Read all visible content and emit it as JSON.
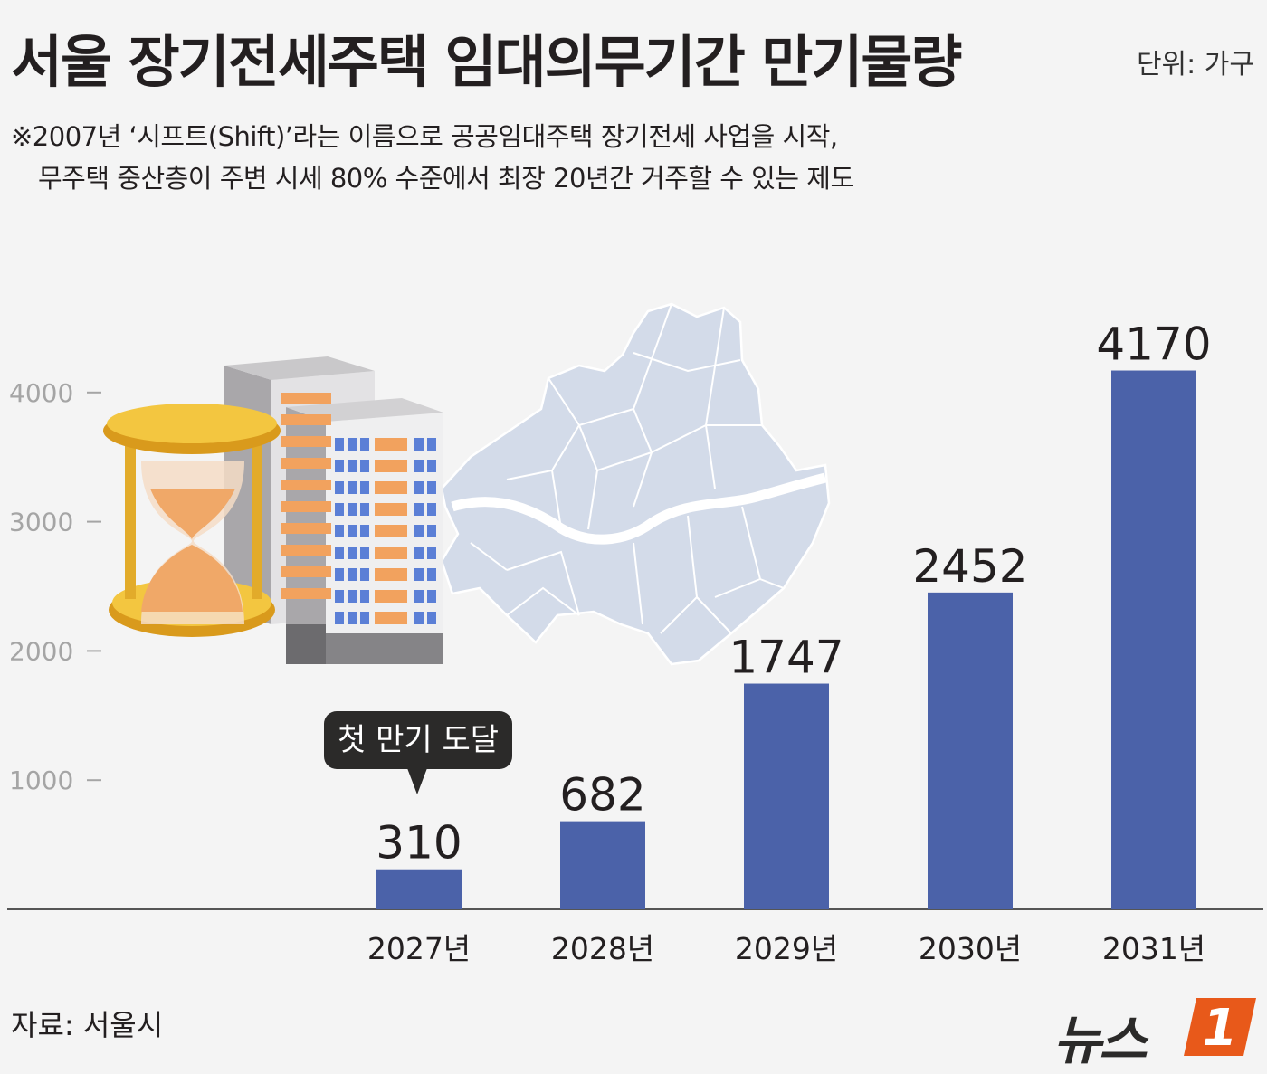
{
  "header": {
    "title": "서울 장기전세주택 임대의무기간 만기물량",
    "unit": "단위: 가구"
  },
  "note": {
    "line1": "※2007년 ‘시프트(Shift)’라는 이름으로 공공임대주택 장기전세 사업을 시작,",
    "line2": "무주택 중산층이 주변 시세 80% 수준에서 최장 20년간 거주할 수 있는 제도"
  },
  "callout": {
    "label": "첫 만기 도달"
  },
  "footer": {
    "source": "자료: 서울시",
    "logo_text": "뉴스",
    "logo_mark": "1"
  },
  "colors": {
    "bar": "#4b62a9",
    "map": "#d3dbe9",
    "callout": "#2b2a29",
    "logo_accent": "#e8591a"
  },
  "icons": [
    "hourglass-icon",
    "apartment-building-icon",
    "seoul-map-icon",
    "news1-logo-icon"
  ],
  "chart_data": {
    "type": "bar",
    "categories": [
      "2027년",
      "2028년",
      "2029년",
      "2030년",
      "2031년"
    ],
    "values": [
      310,
      682,
      1747,
      2452,
      4170
    ],
    "data_labels": [
      "310",
      "682",
      "1747",
      "2452",
      "4170"
    ],
    "y_ticks": [
      1000,
      2000,
      3000,
      4000
    ],
    "y_tick_labels": [
      "1000",
      "2000",
      "3000",
      "4000"
    ],
    "ylim": [
      0,
      4400
    ],
    "title": "서울 장기전세주택 임대의무기간 만기물량",
    "xlabel": "",
    "ylabel": "",
    "grid": false,
    "legend": "none"
  }
}
